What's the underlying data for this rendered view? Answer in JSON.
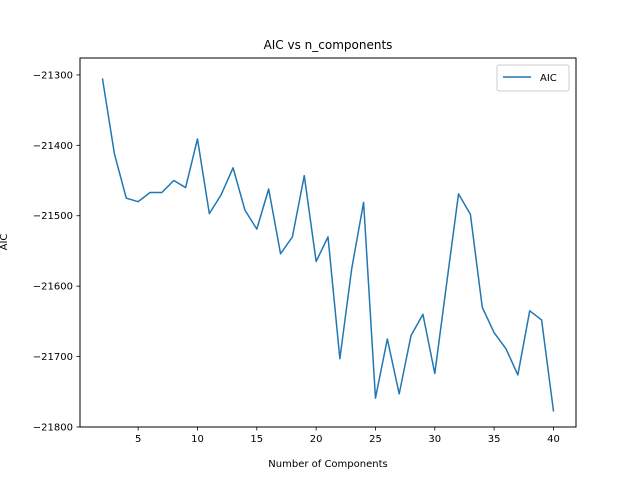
{
  "chart_data": {
    "type": "line",
    "title": "AIC vs n_components",
    "xlabel": "Number of Components",
    "ylabel": "AIC",
    "xlim": [
      0.1,
      41.9
    ],
    "ylim": [
      -21800,
      -21276
    ],
    "xticks": [
      5,
      10,
      15,
      20,
      25,
      30,
      35,
      40
    ],
    "yticks": [
      -21800,
      -21700,
      -21600,
      -21500,
      -21400,
      -21300
    ],
    "ytick_labels": [
      "−21800",
      "−21700",
      "−21600",
      "−21500",
      "−21400",
      "−21300"
    ],
    "grid": false,
    "legend_position": "top-right",
    "series": [
      {
        "name": "AIC",
        "color": "#1f77b4",
        "x": [
          2,
          3,
          4,
          5,
          6,
          7,
          8,
          9,
          10,
          11,
          12,
          13,
          14,
          15,
          16,
          17,
          18,
          19,
          20,
          21,
          22,
          23,
          24,
          25,
          26,
          27,
          28,
          29,
          30,
          31,
          32,
          33,
          34,
          35,
          36,
          37,
          38,
          39,
          40
        ],
        "y": [
          -21306,
          -21412,
          -21475,
          -21480,
          -21467,
          -21467,
          -21450,
          -21460,
          -21391,
          -21497,
          -21470,
          -21432,
          -21492,
          -21519,
          -21462,
          -21554,
          -21530,
          -21443,
          -21565,
          -21530,
          -21703,
          -21575,
          -21481,
          -21759,
          -21675,
          -21753,
          -21670,
          -21640,
          -21724,
          -21596,
          -21469,
          -21498,
          -21630,
          -21666,
          -21689,
          -21726,
          -21635,
          -21648,
          -21777
        ]
      }
    ]
  }
}
